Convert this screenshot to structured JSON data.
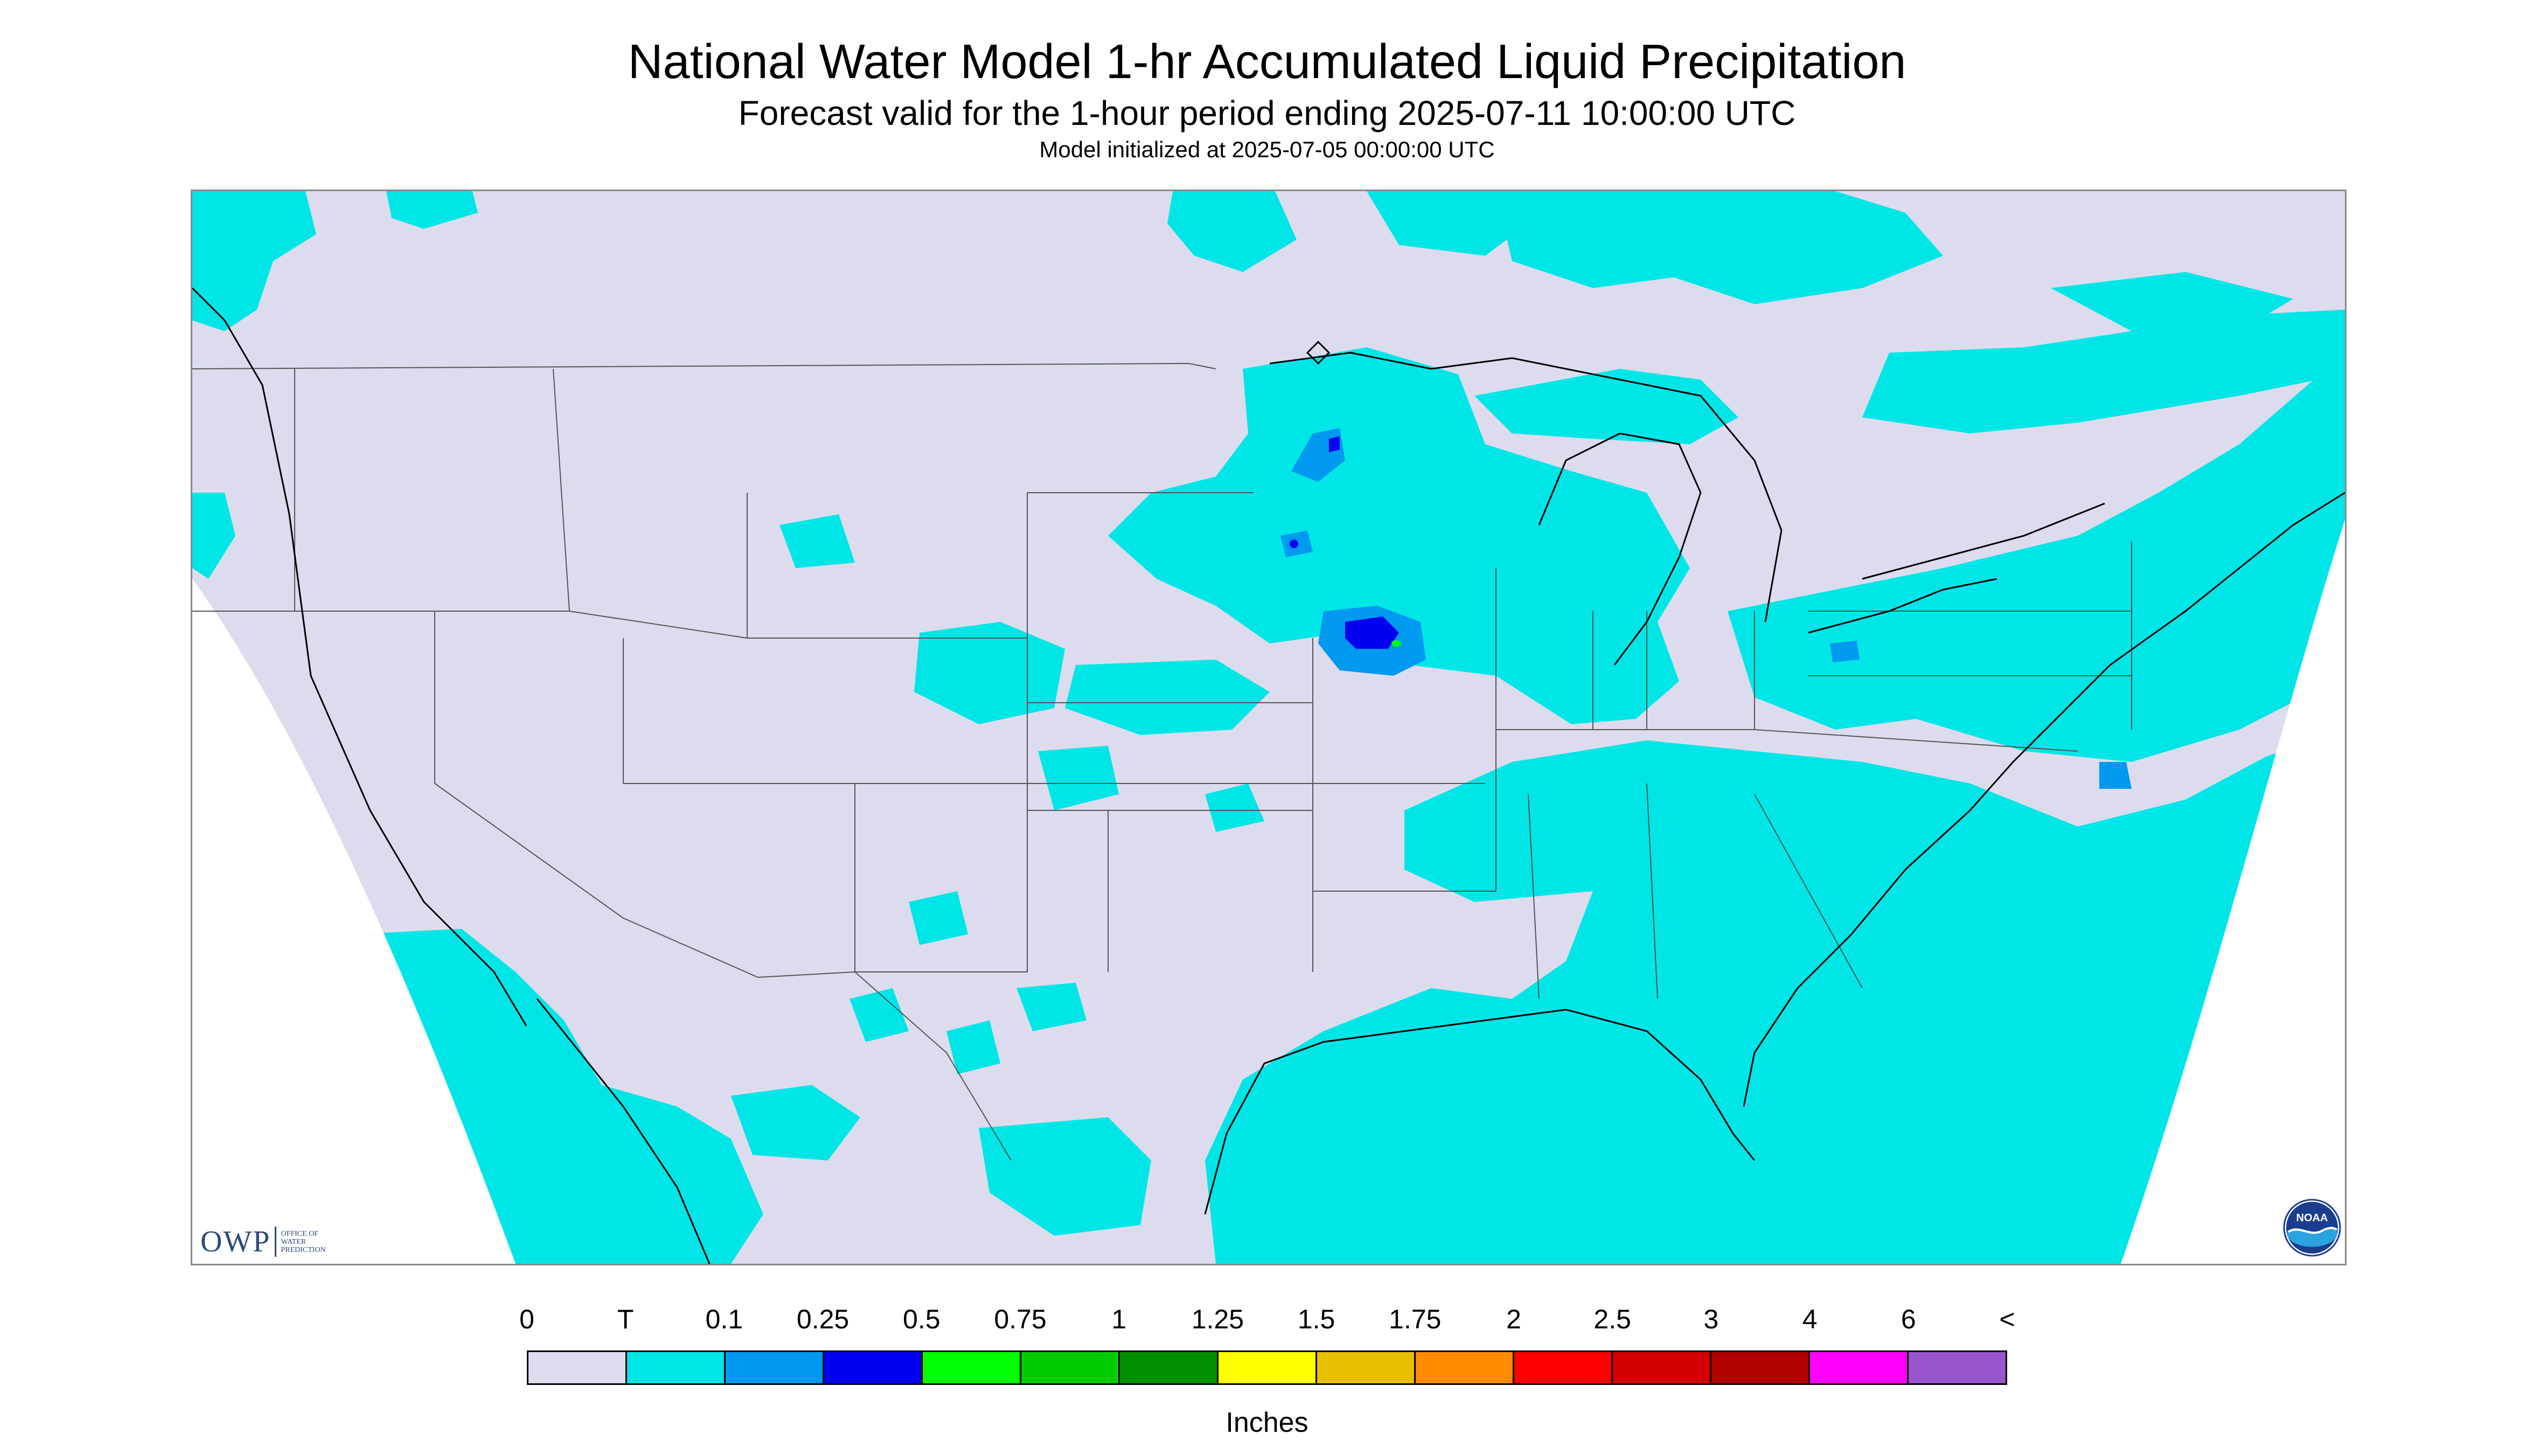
{
  "header": {
    "title": "National Water Model 1-hr Accumulated Liquid Precipitation",
    "subtitle": "Forecast valid for the 1-hour period ending 2025-07-11 10:00:00 UTC",
    "init_line": "Model initialized at 2025-07-05 00:00:00 UTC"
  },
  "map": {
    "background_color": "#dcdcee",
    "outside_domain_color": "#ffffff",
    "boundary_color": "#555555",
    "coastline_color": "#000000"
  },
  "branding": {
    "owp_letters": "OWP",
    "owp_office_text": "Office of Water Prediction",
    "noaa_text": "NOAA"
  },
  "legend": {
    "tick_labels": [
      "0",
      "T",
      "0.1",
      "0.25",
      "0.5",
      "0.75",
      "1",
      "1.25",
      "1.5",
      "1.75",
      "2",
      "2.5",
      "3",
      "4",
      "6",
      "<"
    ],
    "colors": [
      "#dcdcee",
      "#00e6e6",
      "#0099f0",
      "#0000ee",
      "#00ff00",
      "#00cc00",
      "#009000",
      "#ffff00",
      "#e6c000",
      "#ff8c00",
      "#ff0000",
      "#d20000",
      "#b00000",
      "#ff00ff",
      "#9955cc"
    ],
    "units": "Inches"
  }
}
